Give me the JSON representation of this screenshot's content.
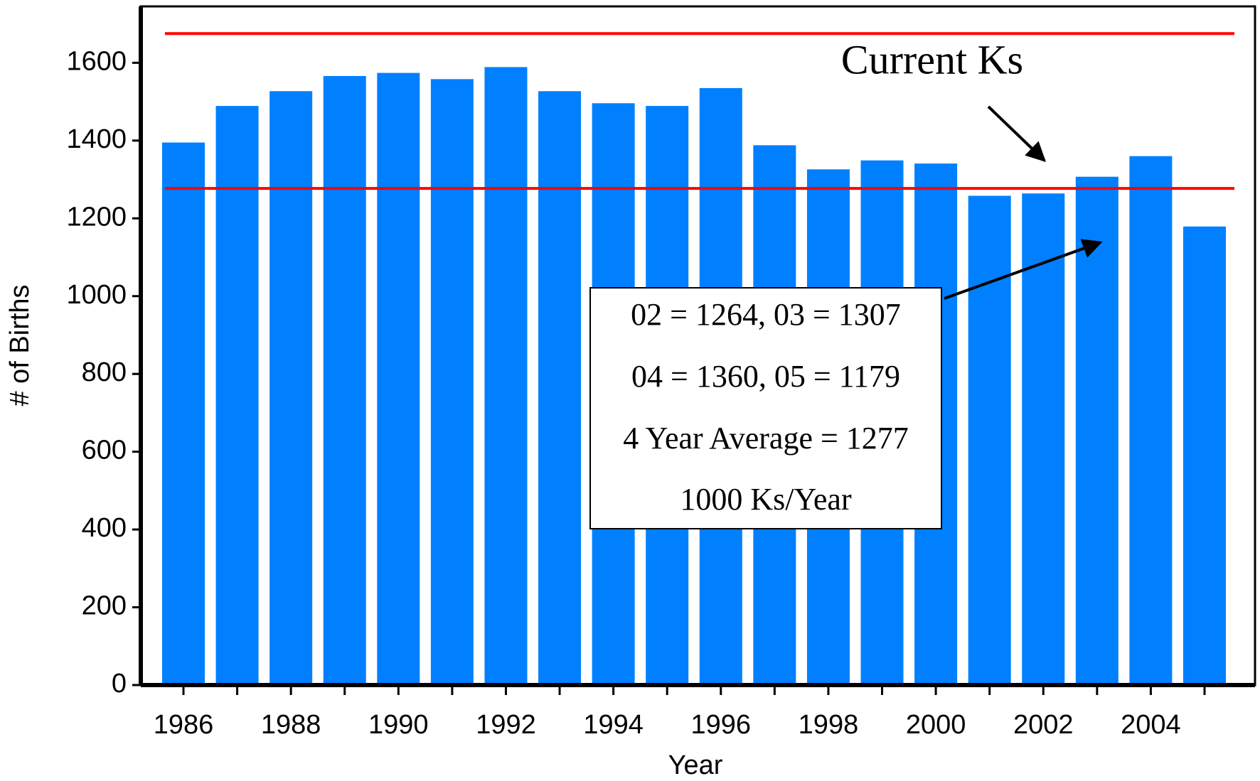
{
  "chart_data": {
    "type": "bar",
    "categories": [
      "1986",
      null,
      "1988",
      null,
      "1990",
      null,
      "1992",
      null,
      "1994",
      null,
      "1996",
      null,
      "1998",
      null,
      "2000",
      null,
      "2002",
      null,
      "2004",
      null
    ],
    "values": [
      1395,
      1489,
      1527,
      1566,
      1574,
      1558,
      1589,
      1527,
      1496,
      1489,
      1535,
      1388,
      1326,
      1349,
      1341,
      1258,
      1264,
      1307,
      1360,
      1179
    ],
    "color": "#0080ff",
    "xlabel": "Year",
    "ylabel": "# of Births",
    "ylim": [
      0,
      1745
    ],
    "yticks": [
      0,
      200,
      400,
      600,
      800,
      1000,
      1200,
      1400,
      1600
    ],
    "reference_lines": [
      {
        "value": 1675,
        "color": "#ff0000"
      },
      {
        "value": 1277,
        "color": "#ff0000"
      }
    ],
    "annotations": {
      "current": "Current Ks",
      "box": [
        "02 = 1264, 03 = 1307",
        "04 = 1360, 05 = 1179",
        "4 Year Average = 1277",
        "1000 Ks/Year"
      ]
    }
  }
}
